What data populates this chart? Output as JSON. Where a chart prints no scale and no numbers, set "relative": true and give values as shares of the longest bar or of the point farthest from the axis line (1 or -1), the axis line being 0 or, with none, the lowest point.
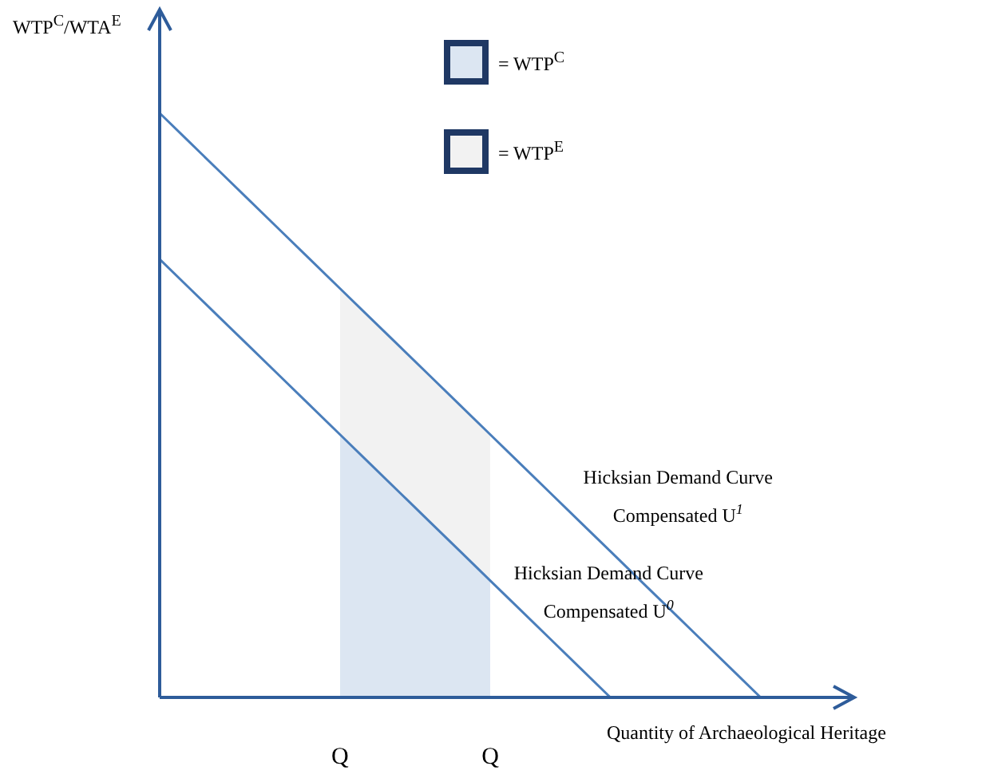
{
  "chart_data": {
    "type": "line",
    "relative": true,
    "xlabel": "Quantity of Archaeological Heritage",
    "ylabel": "WTP$^{C}$/WTA$^{E}$",
    "legend": "top",
    "marker": "none",
    "categories": [
      null,
      null,
      null,
      null,
      null,
      null,
      "Q",
      null,
      null,
      null,
      null,
      "Q",
      null,
      null,
      null,
      null,
      null,
      null,
      null,
      null,
      null,
      null,
      null
    ],
    "series": [
      {
        "type": "area",
        "name": "= WTP$^{C}$",
        "color": "#dce6f2",
        "values": [
          null,
          null,
          null,
          null,
          null,
          null,
          0.45,
          0.4,
          0.35,
          0.3,
          0.25,
          0.2,
          null,
          null,
          null,
          null,
          null,
          null,
          null,
          null,
          null,
          null,
          null
        ]
      },
      {
        "type": "area",
        "name": "= WTP$^{E}$",
        "color": "#f2f2f2",
        "values": [
          null,
          null,
          null,
          null,
          null,
          null,
          0.7,
          0.65,
          0.6,
          0.55,
          0.5,
          0.45,
          null,
          null,
          null,
          null,
          null,
          null,
          null,
          null,
          null,
          null,
          null
        ]
      },
      {
        "type": "line",
        "name": "Hicksian Demand Curve Compensated U$^{1}$",
        "color": "#4a7ebb",
        "values": [
          1,
          0.95,
          0.9,
          0.85,
          0.8,
          0.75,
          0.7,
          0.65,
          0.6,
          0.55,
          0.5,
          0.45,
          0.4,
          0.35,
          0.3,
          0.25,
          0.2,
          0.15,
          0.1,
          0.05,
          0,
          null,
          null
        ]
      },
      {
        "type": "line",
        "name": "Hicksian Demand Curve Compensated U$^{0}$",
        "color": "#4a7ebb",
        "values": [
          0.75,
          0.7,
          0.65,
          0.6,
          0.55,
          0.5,
          0.45,
          0.4,
          0.35,
          0.3,
          0.25,
          0.2,
          0.15,
          0.1,
          0.05,
          0,
          null,
          null,
          null,
          null,
          null,
          null,
          null
        ]
      }
    ]
  }
}
